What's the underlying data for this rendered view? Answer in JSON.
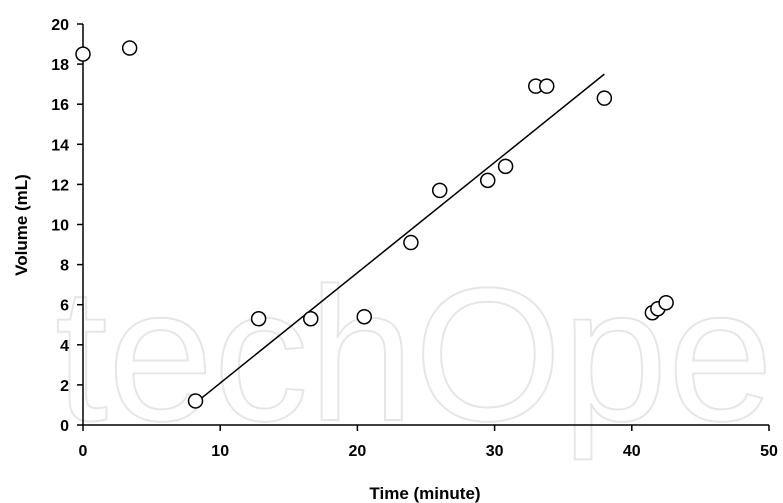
{
  "chart_data": {
    "type": "scatter",
    "title": "",
    "xlabel": "Time (minute)",
    "ylabel": "Volume (mL)",
    "xlim": [
      0,
      50
    ],
    "ylim": [
      0,
      20
    ],
    "x_ticks": [
      0,
      10,
      20,
      30,
      40,
      50
    ],
    "y_ticks": [
      0,
      2,
      4,
      6,
      8,
      10,
      12,
      14,
      16,
      18,
      20
    ],
    "grid": false,
    "legend": "none",
    "series": [
      {
        "marker": "open-circle",
        "x": [
          0,
          3.4,
          8.2,
          12.8,
          16.6,
          20.5,
          23.9,
          26.0,
          29.5,
          30.8,
          33.0,
          33.8,
          38.0,
          41.5,
          41.9,
          42.5
        ],
        "y": [
          18.5,
          18.8,
          1.2,
          5.3,
          5.3,
          5.4,
          9.1,
          11.7,
          12.2,
          12.9,
          16.9,
          16.9,
          16.3,
          5.6,
          5.8,
          6.1
        ]
      }
    ],
    "trendline": {
      "x": [
        8.2,
        38.0
      ],
      "y": [
        1.1,
        17.5
      ]
    }
  },
  "watermark": {
    "text": "techOpen"
  }
}
